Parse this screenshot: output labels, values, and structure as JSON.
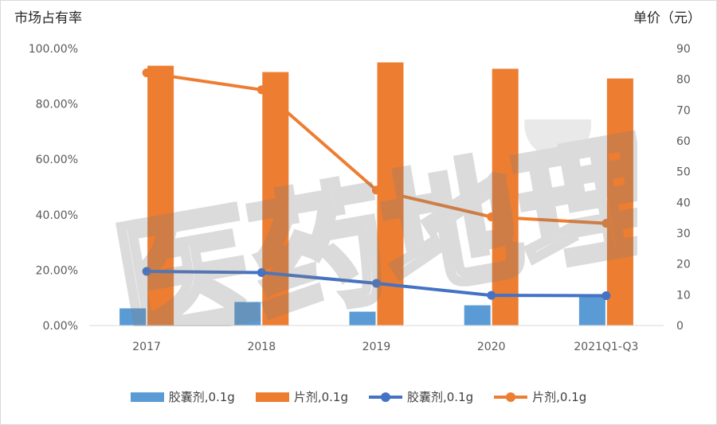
{
  "chart_data": {
    "type": "bar",
    "categories": [
      "2017",
      "2018",
      "2019",
      "2020",
      "2021Q1-Q3"
    ],
    "y_left": {
      "label": "市场占有率",
      "ticks": [
        "0.00%",
        "20.00%",
        "40.00%",
        "60.00%",
        "80.00%",
        "100.00%"
      ],
      "range": [
        0,
        100
      ]
    },
    "y_right": {
      "label": "单价（元）",
      "ticks": [
        "0",
        "10",
        "20",
        "30",
        "40",
        "50",
        "60",
        "70",
        "80",
        "90"
      ],
      "range": [
        0,
        90
      ]
    },
    "bar_series": [
      {
        "name": "胶囊剂,0.1g",
        "color": "#5b9bd5",
        "values": [
          6.2,
          8.5,
          5.0,
          7.3,
          10.8
        ]
      },
      {
        "name": "片剂,0.1g",
        "color": "#ed7d31",
        "values": [
          93.8,
          91.5,
          95.0,
          92.7,
          89.2
        ]
      }
    ],
    "line_series": [
      {
        "name": "胶囊剂,0.1g",
        "color": "#4472c4",
        "values": [
          17.6,
          17.2,
          13.7,
          9.8,
          9.7
        ]
      },
      {
        "name": "片剂,0.1g",
        "color": "#ed7d31",
        "values": [
          82.1,
          76.6,
          44.0,
          35.3,
          33.2
        ]
      }
    ],
    "grid": false,
    "legend_position": "bottom"
  },
  "watermark": {
    "text": "医药地理"
  }
}
